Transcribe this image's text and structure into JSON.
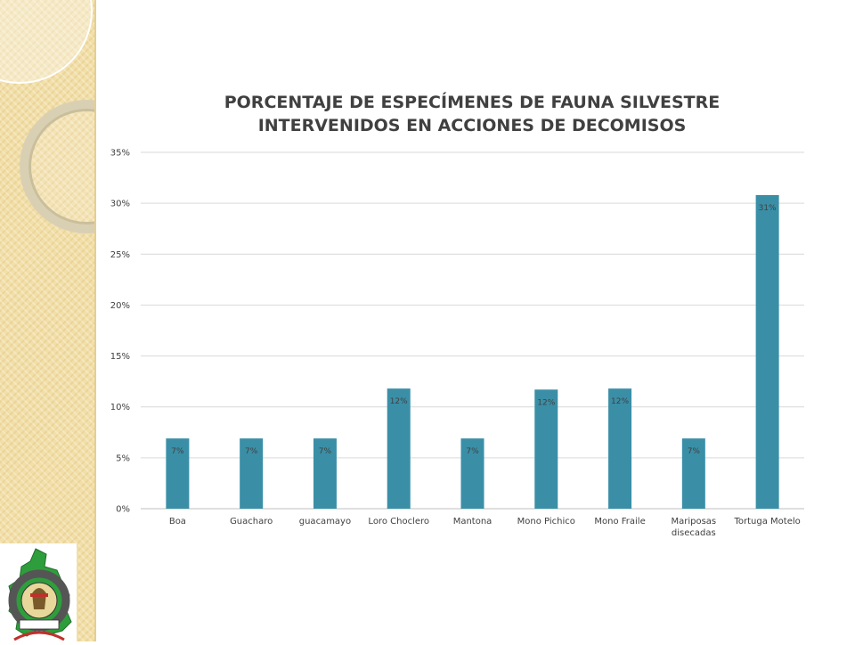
{
  "chart_data": {
    "type": "bar",
    "title_lines": [
      "PORCENTAJE DE ESPECÍMENES DE FAUNA SILVESTRE",
      "INTERVENIDOS EN ACCIONES DE DECOMISOS"
    ],
    "categories": [
      [
        "Boa"
      ],
      [
        "Guacharo"
      ],
      [
        "guacamayo"
      ],
      [
        "Loro Choclero"
      ],
      [
        "Mantona"
      ],
      [
        "Mono Pichico"
      ],
      [
        "Mono Fraile"
      ],
      [
        "Mariposas",
        "disecadas"
      ],
      [
        "Tortuga Motelo"
      ]
    ],
    "values": [
      6.9,
      6.9,
      6.9,
      11.8,
      6.9,
      11.7,
      11.8,
      6.9,
      30.8
    ],
    "data_labels": [
      "7%",
      "7%",
      "7%",
      "12%",
      "7%",
      "12%",
      "12%",
      "7%",
      "31%"
    ],
    "yticks": [
      "0%",
      "5%",
      "10%",
      "15%",
      "20%",
      "25%",
      "30%",
      "35%"
    ],
    "ylim": [
      0,
      35
    ],
    "ytick_step": 5,
    "grid": true,
    "legend": "none",
    "bar_color": "#3a8fa7"
  },
  "logo": {
    "text_top": "GOBIERNO REGIONAL",
    "text_bottom": "AMAZONAS"
  }
}
